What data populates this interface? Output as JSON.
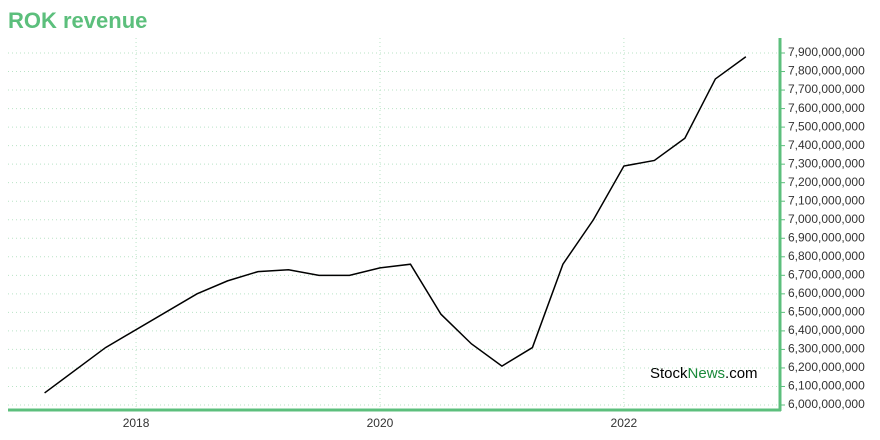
{
  "chart_data": {
    "type": "line",
    "title": "ROK revenue",
    "x": [
      2017.25,
      2017.75,
      2018.5,
      2018.75,
      2019.0,
      2019.25,
      2019.5,
      2019.75,
      2020.0,
      2020.25,
      2020.5,
      2020.75,
      2021.0,
      2021.25,
      2021.5,
      2021.75,
      2022.0,
      2022.25,
      2022.5,
      2022.75,
      2023.0
    ],
    "series": [
      {
        "name": "revenue",
        "color": "#000000",
        "values": [
          6065000000,
          6310000000,
          6600000000,
          6670000000,
          6720000000,
          6730000000,
          6700000000,
          6700000000,
          6740000000,
          6760000000,
          6490000000,
          6330000000,
          6210000000,
          6310000000,
          6760000000,
          7000000000,
          7290000000,
          7320000000,
          7440000000,
          7760000000,
          7880000000
        ]
      }
    ],
    "xlim": [
      2016.95,
      2023.28
    ],
    "xticks": [
      2018,
      2020,
      2022
    ],
    "ylim": [
      5973000000,
      7981000000
    ],
    "yticks": [
      {
        "value": 6000000000,
        "label": "6,000,000,000"
      },
      {
        "value": 6100000000,
        "label": "6,100,000,000"
      },
      {
        "value": 6200000000,
        "label": "6,200,000,000"
      },
      {
        "value": 6300000000,
        "label": "6,300,000,000"
      },
      {
        "value": 6400000000,
        "label": "6,400,000,000"
      },
      {
        "value": 6500000000,
        "label": "6,500,000,000"
      },
      {
        "value": 6600000000,
        "label": "6,600,000,000"
      },
      {
        "value": 6700000000,
        "label": "6,700,000,000"
      },
      {
        "value": 6800000000,
        "label": "6,800,000,000"
      },
      {
        "value": 6900000000,
        "label": "6,900,000,000"
      },
      {
        "value": 7000000000,
        "label": "7,000,000,000"
      },
      {
        "value": 7100000000,
        "label": "7,100,000,000"
      },
      {
        "value": 7200000000,
        "label": "7,200,000,000"
      },
      {
        "value": 7300000000,
        "label": "7,300,000,000"
      },
      {
        "value": 7400000000,
        "label": "7,400,000,000"
      },
      {
        "value": 7500000000,
        "label": "7,500,000,000"
      },
      {
        "value": 7600000000,
        "label": "7,600,000,000"
      },
      {
        "value": 7700000000,
        "label": "7,700,000,000"
      },
      {
        "value": 7800000000,
        "label": "7,800,000,000"
      },
      {
        "value": 7900000000,
        "label": "7,900,000,000"
      }
    ],
    "grid": true,
    "axis_color": "#5cbf7c",
    "watermark": [
      "Stock",
      "News",
      ".com"
    ]
  }
}
